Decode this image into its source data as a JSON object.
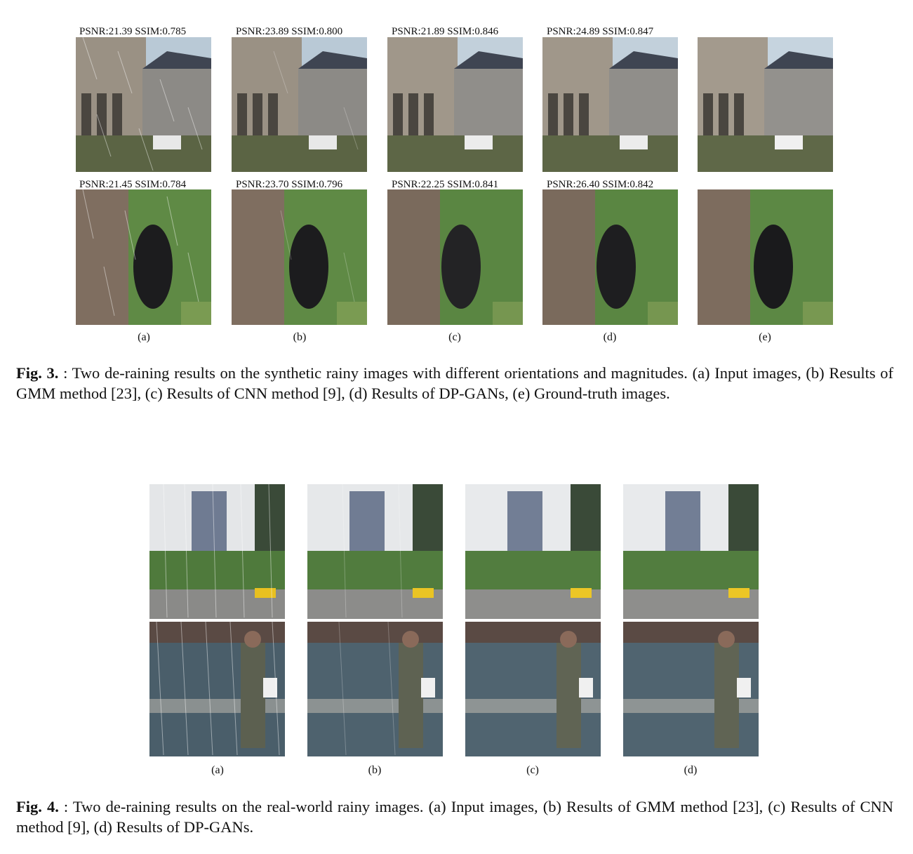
{
  "fig3": {
    "row1_metrics": [
      "PSNR:21.39  SSIM:0.785",
      "PSNR:23.89  SSIM:0.800",
      "PSNR:21.89  SSIM:0.846",
      "PSNR:24.89  SSIM:0.847"
    ],
    "row2_metrics": [
      "PSNR:21.45  SSIM:0.784",
      "PSNR:23.70  SSIM:0.796",
      "PSNR:22.25  SSIM:0.841",
      "PSNR:26.40  SSIM:0.842"
    ],
    "labels": [
      "(a)",
      "(b)",
      "(c)",
      "(d)",
      "(e)"
    ],
    "caption_prefix": "Fig. 3.",
    "caption_text": ": Two de-raining results on the synthetic rainy images with different orientations and magnitudes. (a) Input images, (b) Results of GMM method [23], (c) Results of CNN method [9], (d) Results of DP-GANs, (e) Ground-truth images."
  },
  "fig4": {
    "labels": [
      "(a)",
      "(b)",
      "(c)",
      "(d)"
    ],
    "caption_prefix": "Fig. 4.",
    "caption_text": ": Two de-raining results on the real-world rainy images. (a) Input images, (b) Results of GMM method [23], (c) Results of CNN method [9], (d) Results of DP-GANs."
  }
}
